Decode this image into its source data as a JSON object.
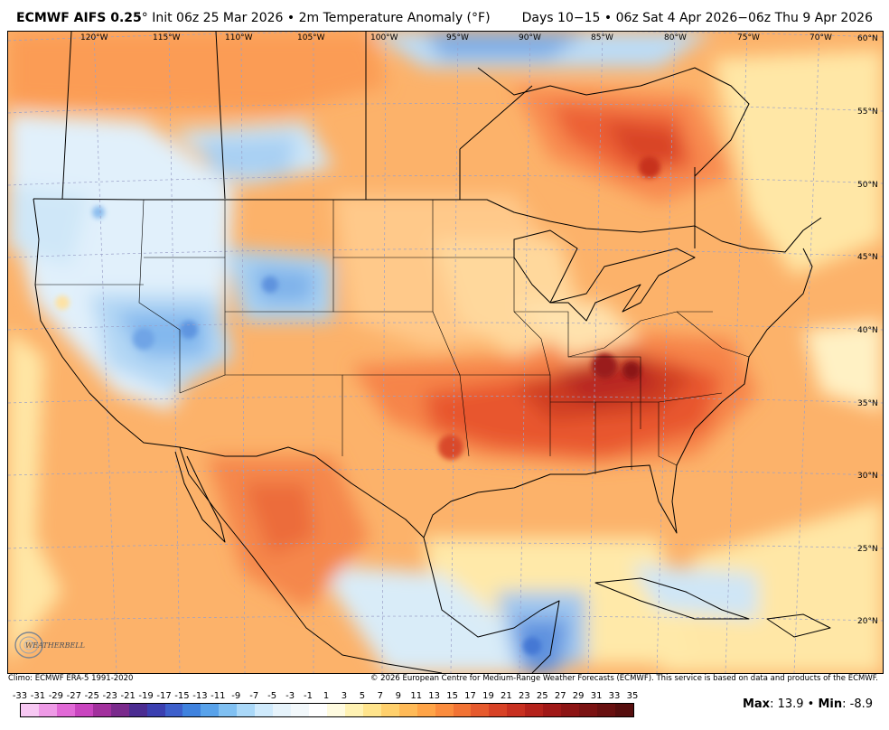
{
  "header": {
    "model": "ECMWF AIFS 0.25",
    "degree_mark": "°",
    "init": " Init 06z 25 Mar 2026 • 2m Temperature Anomaly (°F)",
    "valid": "Days 10−15 • 06z Sat 4 Apr 2026−06z Thu 9 Apr 2026"
  },
  "map": {
    "lon_labels": [
      "120°W",
      "115°W",
      "110°W",
      "105°W",
      "100°W",
      "95°W",
      "90°W",
      "85°W",
      "80°W",
      "75°W",
      "70°W"
    ],
    "lat_labels": [
      "60°N",
      "55°N",
      "50°N",
      "45°N",
      "40°N",
      "35°N",
      "30°N",
      "25°N",
      "20°N"
    ],
    "logo_text": "WEATHERBELL"
  },
  "footer": {
    "climo": "Climo: ECMWF ERA-5 1991-2020",
    "copyright": "© 2026 European Centre for Medium-Range Weather Forecasts (ECMWF). This service is based on data and products of the ECMWF.",
    "max_label": "Max",
    "max_value": ": 13.9 • ",
    "min_label": "Min",
    "min_value": ": -8.9"
  },
  "colorbar": {
    "ticks": [
      "-33",
      "-31",
      "-29",
      "-27",
      "-25",
      "-23",
      "-21",
      "-19",
      "-17",
      "-15",
      "-13",
      "-11",
      "-9",
      "-7",
      "-5",
      "-3",
      "-1",
      "1",
      "3",
      "5",
      "7",
      "9",
      "11",
      "13",
      "15",
      "17",
      "19",
      "21",
      "23",
      "25",
      "27",
      "29",
      "31",
      "33",
      "35"
    ],
    "colors": [
      "#f7c8f3",
      "#ee9ae6",
      "#e169d6",
      "#c944bf",
      "#a2309d",
      "#7a2a8c",
      "#4b2c91",
      "#3b3fb0",
      "#3d5fcb",
      "#3f82de",
      "#58a2ea",
      "#80c0f2",
      "#aad8f8",
      "#cfeafc",
      "#e6f3fb",
      "#f2f8fb",
      "#ffffff",
      "#fffbe0",
      "#fff2b3",
      "#ffe48c",
      "#ffd06c",
      "#ffba57",
      "#ffa447",
      "#fb8c3d",
      "#f27334",
      "#e65a2d",
      "#d84226",
      "#c83020",
      "#b4221b",
      "#a01817",
      "#8c1414",
      "#7a1212",
      "#681010",
      "#560e0e"
    ]
  }
}
